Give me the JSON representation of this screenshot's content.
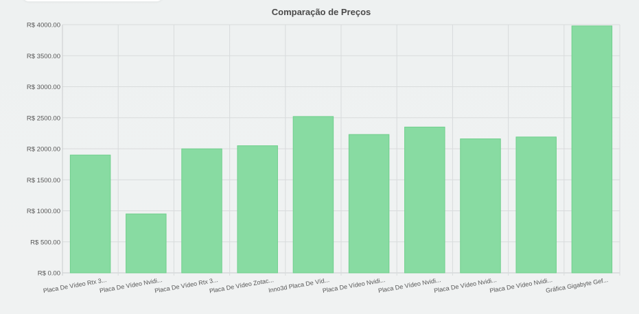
{
  "chart_data": {
    "type": "bar",
    "title": "Comparação de Preços",
    "xlabel": "",
    "ylabel": "",
    "categories": [
      "Placa De Vídeo Rtx 3...",
      "Placa De Vídeo Nvidi...",
      "Placa De Vídeo Rtx 3...",
      "Placa De Vídeo Zotac...",
      "Inno3d Placa De Víd...",
      "Placa De Vídeo Nvidi...",
      "Placa De Vídeo Nvidi...",
      "Placa De Vídeo Nvidi...",
      "Placa De Vídeo Nvidi...",
      "Gráfica Gigabyte Gef..."
    ],
    "values": [
      1899,
      950,
      1999,
      2049,
      2520,
      2230,
      2350,
      2160,
      2190,
      3980
    ],
    "ylim": [
      0,
      4000
    ],
    "y_ticks": [
      "R$ 0.00",
      "R$ 500.00",
      "R$ 1000.00",
      "R$ 1500.00",
      "R$ 2000.00",
      "R$ 2500.00",
      "R$ 3000.00",
      "R$ 3500.00",
      "R$ 4000.00"
    ],
    "grid": true,
    "legend": "none",
    "colors": {
      "bar_fill": "#88dba2",
      "bar_stroke": "#6fcf8c"
    }
  }
}
